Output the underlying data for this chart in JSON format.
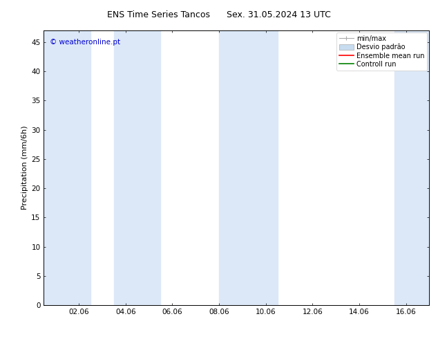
{
  "title_left": "ENS Time Series Tancos",
  "title_right": "Sex. 31.05.2024 13 UTC",
  "ylabel": "Precipitation (mm/6h)",
  "watermark": "© weatheronline.pt",
  "watermark_color": "#0000cc",
  "bg_color": "#ffffff",
  "plot_bg_color": "#ffffff",
  "ylim": [
    0,
    47
  ],
  "yticks": [
    0,
    5,
    10,
    15,
    20,
    25,
    30,
    35,
    40,
    45
  ],
  "xtick_labels": [
    "02.06",
    "04.06",
    "06.06",
    "08.06",
    "10.06",
    "12.06",
    "14.06",
    "16.06"
  ],
  "xtick_positions": [
    1,
    3,
    5,
    7,
    9,
    11,
    13,
    15
  ],
  "xlim": [
    -0.5,
    16.0
  ],
  "shaded_bands": [
    {
      "x_start": -0.5,
      "x_end": 1.5,
      "color": "#dce8f8"
    },
    {
      "x_start": 2.5,
      "x_end": 4.5,
      "color": "#dce8f8"
    },
    {
      "x_start": 7.0,
      "x_end": 9.5,
      "color": "#dce8f8"
    },
    {
      "x_start": 14.5,
      "x_end": 16.0,
      "color": "#dce8f8"
    }
  ],
  "minmax_color": "#aaaaaa",
  "desvio_color": "#c8dcf0",
  "ensemble_color": "#ff0000",
  "control_color": "#008000",
  "title_fontsize": 9,
  "ylabel_fontsize": 8,
  "tick_fontsize": 7.5,
  "watermark_fontsize": 7.5,
  "legend_fontsize": 7
}
